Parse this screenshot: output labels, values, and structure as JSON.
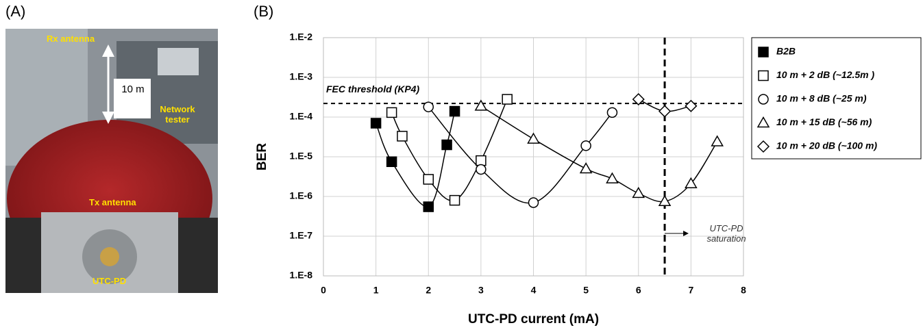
{
  "panel_a": {
    "label": "(A)",
    "rx_label": "Rx antenna",
    "distance_label": "10 m",
    "tester_label": "Network tester",
    "tx_label": "Tx antenna",
    "pd_label": "UTC-PD"
  },
  "panel_b_label": "(B)",
  "chart_data": {
    "type": "line",
    "xlabel": "UTC-PD current (mA)",
    "ylabel": "BER",
    "xlim": [
      0,
      8
    ],
    "xticks": [
      0,
      1,
      2,
      3,
      4,
      5,
      6,
      7,
      8
    ],
    "ylim": [
      1e-08,
      0.01
    ],
    "log_y": true,
    "yticks": [
      {
        "value": 1e-08,
        "label": "1.E-8"
      },
      {
        "value": 1e-07,
        "label": "1.E-7"
      },
      {
        "value": 1e-06,
        "label": "1.E-6"
      },
      {
        "value": 1e-05,
        "label": "1.E-5"
      },
      {
        "value": 0.0001,
        "label": "1.E-4"
      },
      {
        "value": 0.001,
        "label": "1.E-3"
      },
      {
        "value": 0.01,
        "label": "1.E-2"
      }
    ],
    "grid": true,
    "legend": "right",
    "fec_threshold": 0.00022,
    "fec_label": "FEC threshold (KP4)",
    "saturation_x": 6.5,
    "saturation_label": "UTC-PD saturation",
    "series": [
      {
        "name": "B2B",
        "color": "#000000",
        "fill": "#000000",
        "marker": "square",
        "x": [
          1,
          1.3,
          2,
          2.35,
          2.5
        ],
        "values": [
          7e-05,
          7.5e-06,
          5.5e-07,
          2e-05,
          0.00014
        ]
      },
      {
        "name": "10 m + 2 dB (~12.5m )",
        "color": "#000000",
        "fill": "#ffffff",
        "marker": "square",
        "x": [
          1.3,
          1.5,
          2,
          2.5,
          3,
          3.5
        ],
        "values": [
          0.00013,
          3.3e-05,
          2.7e-06,
          8e-07,
          8e-06,
          0.00028
        ]
      },
      {
        "name": "10 m + 8 dB (~25 m)",
        "color": "#000000",
        "fill": "#ffffff",
        "marker": "circle",
        "x": [
          2,
          3,
          4,
          5,
          5.5
        ],
        "values": [
          0.00018,
          4.8e-06,
          7e-07,
          1.9e-05,
          0.00013
        ]
      },
      {
        "name": "10 m + 15 dB (~56 m)",
        "color": "#000000",
        "fill": "#ffffff",
        "marker": "triangle",
        "x": [
          3,
          4,
          5,
          5.5,
          6,
          6.5,
          7,
          7.5
        ],
        "values": [
          0.00019,
          2.8e-05,
          5e-06,
          2.8e-06,
          1.2e-06,
          7.5e-07,
          2.1e-06,
          2.4e-05
        ]
      },
      {
        "name": "10 m + 20 dB (~100 m)",
        "color": "#000000",
        "fill": "#ffffff",
        "marker": "diamond",
        "x": [
          6,
          6.5,
          7
        ],
        "values": [
          0.00028,
          0.00014,
          0.00019
        ]
      }
    ]
  }
}
